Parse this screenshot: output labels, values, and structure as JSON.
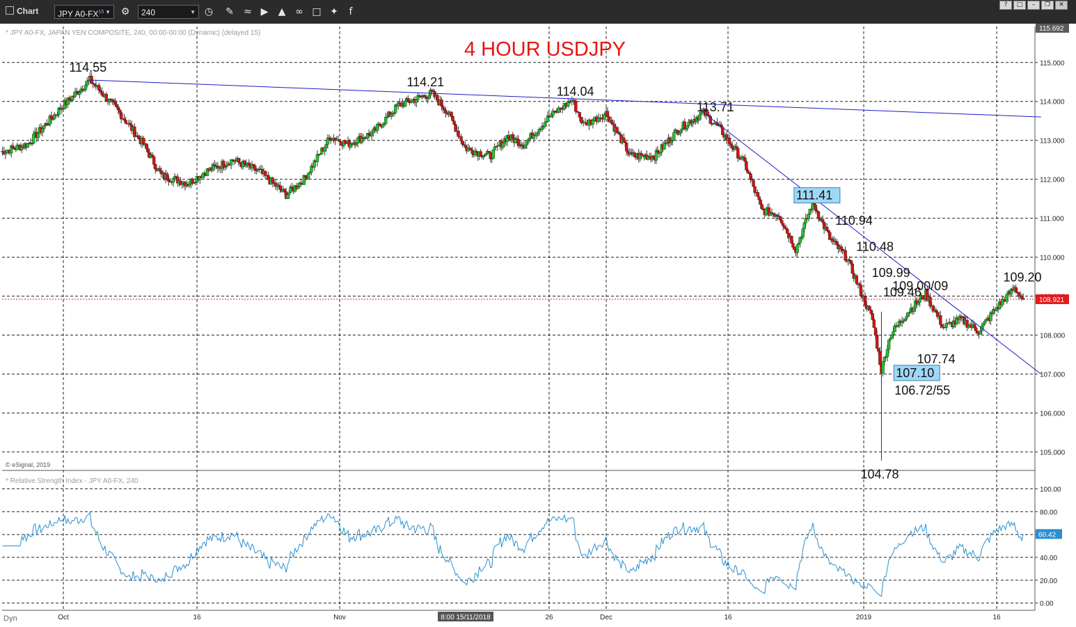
{
  "app": {
    "title": "Chart",
    "symbol": "JPY A0-FX",
    "symbol_superscript": "15",
    "interval": "240",
    "help_button": "?"
  },
  "chart_data": {
    "type": "candlestick",
    "title": "4 HOUR USDJPY",
    "price_panel_label": "* JPY A0-FX, JAPAN YEN COMPOSITE, 240, 00:00-00:00 (Dynamic) (delayed 15)",
    "copyright": "© eSignal, 2019",
    "rsi_panel_label": "* Relative Strength Index - JPY A0-FX, 240",
    "ylim": [
      104.4,
      115.8
    ],
    "y_ticks": [
      "115.000",
      "114.000",
      "113.000",
      "112.000",
      "111.000",
      "110.000",
      "109.000",
      "108.000",
      "107.000",
      "106.000",
      "105.000"
    ],
    "y_top_marker": "115.692",
    "last_price": "108.921",
    "rsi_ylim": [
      -10,
      110
    ],
    "rsi_ticks": [
      "100.00",
      "80.00",
      "60.00",
      "40.00",
      "20.00",
      "0.00"
    ],
    "rsi_last": "60.42",
    "x_ticks": [
      "Oct",
      "16",
      "Nov",
      "26",
      "Dec",
      "16",
      "2019",
      "16"
    ],
    "x_cursor_label": "8:00 15/11/2018",
    "bottom_left_label": "Dyn",
    "grid": true,
    "anchors": [
      {
        "date": "2018-09-24",
        "close": 112.7
      },
      {
        "date": "2018-09-27",
        "close": 112.9
      },
      {
        "date": "2018-10-01",
        "close": 113.9
      },
      {
        "date": "2018-10-04",
        "close": 114.55
      },
      {
        "date": "2018-10-07",
        "close": 113.8
      },
      {
        "date": "2018-10-10",
        "close": 112.9
      },
      {
        "date": "2018-10-12",
        "close": 112.1
      },
      {
        "date": "2018-10-15",
        "close": 111.9
      },
      {
        "date": "2018-10-17",
        "close": 112.2
      },
      {
        "date": "2018-10-20",
        "close": 112.5
      },
      {
        "date": "2018-10-23",
        "close": 112.2
      },
      {
        "date": "2018-10-26",
        "close": 111.6
      },
      {
        "date": "2018-10-28",
        "close": 112.0
      },
      {
        "date": "2018-10-31",
        "close": 113.1
      },
      {
        "date": "2018-11-02",
        "close": 112.9
      },
      {
        "date": "2018-11-05",
        "close": 113.2
      },
      {
        "date": "2018-11-08",
        "close": 113.9
      },
      {
        "date": "2018-11-12",
        "close": 114.21
      },
      {
        "date": "2018-11-14",
        "close": 113.7
      },
      {
        "date": "2018-11-16",
        "close": 112.8
      },
      {
        "date": "2018-11-19",
        "close": 112.6
      },
      {
        "date": "2018-11-21",
        "close": 113.1
      },
      {
        "date": "2018-11-23",
        "close": 112.9
      },
      {
        "date": "2018-11-26",
        "close": 113.6
      },
      {
        "date": "2018-11-28",
        "close": 114.04
      },
      {
        "date": "2018-11-29",
        "close": 113.4
      },
      {
        "date": "2018-12-01",
        "close": 113.7
      },
      {
        "date": "2018-12-04",
        "close": 112.6
      },
      {
        "date": "2018-12-07",
        "close": 112.6
      },
      {
        "date": "2018-12-10",
        "close": 113.3
      },
      {
        "date": "2018-12-13",
        "close": 113.71
      },
      {
        "date": "2018-12-15",
        "close": 113.3
      },
      {
        "date": "2018-12-18",
        "close": 112.4
      },
      {
        "date": "2018-12-20",
        "close": 111.2
      },
      {
        "date": "2018-12-22",
        "close": 111.1
      },
      {
        "date": "2018-12-24",
        "close": 110.2
      },
      {
        "date": "2018-12-26",
        "close": 111.41
      },
      {
        "date": "2018-12-27",
        "close": 110.94
      },
      {
        "date": "2018-12-28",
        "close": 110.48
      },
      {
        "date": "2018-12-30",
        "close": 109.99
      },
      {
        "date": "2018-12-31",
        "close": 109.46
      },
      {
        "date": "2019-01-02",
        "close": 108.4
      },
      {
        "date": "2019-01-03",
        "close": 107.1
      },
      {
        "date": "2019-01-04",
        "close": 108.0
      },
      {
        "date": "2019-01-06",
        "close": 108.6
      },
      {
        "date": "2019-01-08",
        "close": 109.05
      },
      {
        "date": "2019-01-10",
        "close": 108.2
      },
      {
        "date": "2019-01-12",
        "close": 108.4
      },
      {
        "date": "2019-01-14",
        "close": 108.1
      },
      {
        "date": "2019-01-16",
        "close": 108.7
      },
      {
        "date": "2019-01-18",
        "close": 109.2
      },
      {
        "date": "2019-01-19",
        "close": 108.921
      }
    ],
    "wicks": [
      {
        "date": "2019-01-03",
        "low": 104.78
      },
      {
        "date": "2019-01-03",
        "low": 106.72
      }
    ],
    "trendlines": [
      {
        "from": {
          "date": "2018-10-04",
          "price": 114.55
        },
        "to": {
          "date": "2019-01-21",
          "price": 113.6
        }
      },
      {
        "from": {
          "date": "2018-12-13",
          "price": 113.71
        },
        "to": {
          "date": "2019-01-21",
          "price": 107.0
        }
      }
    ],
    "annotations": [
      {
        "text": "114.55",
        "date": "2018-10-04",
        "price": 114.55
      },
      {
        "text": "114.21",
        "date": "2018-11-12",
        "price": 114.21
      },
      {
        "text": "114.04",
        "date": "2018-11-28",
        "price": 114.04
      },
      {
        "text": "113.71",
        "date": "2018-12-13",
        "price": 113.71
      },
      {
        "text": "111.41",
        "date": "2018-12-26",
        "price": 111.41,
        "boxed": true
      },
      {
        "text": "110.94",
        "date": "2018-12-27",
        "price": 110.94
      },
      {
        "text": "110.48",
        "date": "2018-12-28",
        "price": 110.48
      },
      {
        "text": "109.99",
        "date": "2018-12-30",
        "price": 109.99
      },
      {
        "text": "109.46",
        "date": "2018-12-31",
        "price": 109.46
      },
      {
        "text": "109.00/09",
        "date": "2019-01-08",
        "price": 109.05
      },
      {
        "text": "109.20",
        "date": "2019-01-18",
        "price": 109.2
      },
      {
        "text": "107.74",
        "date": "2019-01-10",
        "price": 107.74
      },
      {
        "text": "107.10",
        "date": "2019-01-04",
        "price": 107.1,
        "boxed": true
      },
      {
        "text": "106.72/55",
        "date": "2019-01-04",
        "price": 106.72
      },
      {
        "text": "104.78",
        "date": "2019-01-03",
        "price": 104.78
      }
    ],
    "colors": {
      "up": "#22c22e",
      "down": "#d01515",
      "trendline": "#1c1cc8",
      "rsi": "#2a8fd0",
      "title": "#e81414",
      "highlight": "#9fd8f5",
      "last_price_bg": "#e01b1b"
    }
  }
}
